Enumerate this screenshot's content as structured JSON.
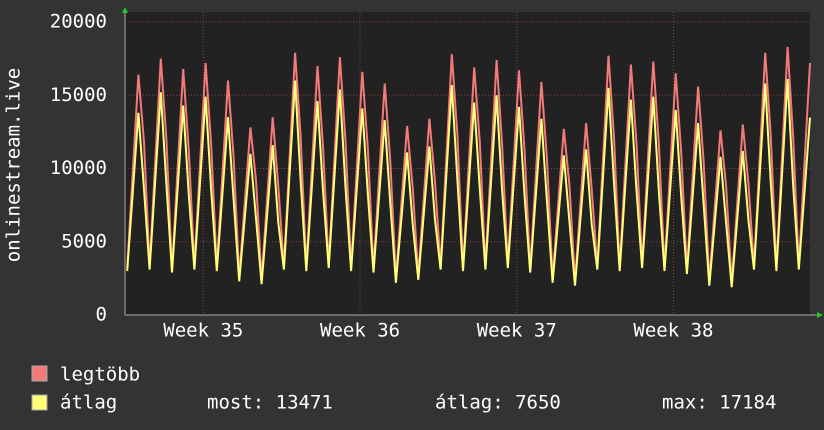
{
  "chart_data": {
    "type": "line",
    "ylabel": "onlinestream.live",
    "x": [
      0.1,
      0.6,
      0.85,
      1.1,
      1.6,
      1.85,
      2.1,
      2.6,
      2.85,
      3.1,
      3.6,
      3.85,
      4.1,
      4.6,
      4.85,
      5.1,
      5.6,
      5.85,
      6.1,
      6.6,
      6.85,
      7.1,
      7.6,
      7.85,
      8.1,
      8.6,
      8.85,
      9.1,
      9.6,
      9.85,
      10.1,
      10.6,
      10.85,
      11.1,
      11.6,
      11.85,
      12.1,
      12.6,
      12.85,
      13.1,
      13.6,
      13.85,
      14.1,
      14.6,
      14.85,
      15.1,
      15.6,
      15.85,
      16.1,
      16.6,
      16.85,
      17.1,
      17.6,
      17.85,
      18.1,
      18.6,
      18.85,
      19.1,
      19.6,
      19.85,
      20.1,
      20.6,
      20.85,
      21.1,
      21.6,
      21.85,
      22.1,
      22.6,
      22.85,
      23.1,
      23.6,
      23.85,
      24.1,
      24.6,
      24.85,
      25.1,
      25.6,
      25.85,
      26.1,
      26.6,
      26.85,
      27.1,
      27.6,
      27.85,
      28.1,
      28.6,
      28.85,
      29.1,
      29.6,
      29.85,
      30.1,
      30.6
    ],
    "series": [
      {
        "name": "legtöbb",
        "color": "#f47a7a",
        "values": [
          3200,
          16400,
          11800,
          3300,
          17500,
          12000,
          3100,
          16800,
          11200,
          3300,
          17200,
          11600,
          3200,
          16000,
          10800,
          2600,
          12800,
          9200,
          2400,
          13500,
          8800,
          3300,
          17900,
          12100,
          3200,
          17000,
          11400,
          3400,
          17600,
          11900,
          3200,
          16600,
          11300,
          3100,
          15800,
          10500,
          2500,
          12900,
          8700,
          2700,
          13400,
          9100,
          3300,
          17800,
          12300,
          3200,
          16900,
          11800,
          3300,
          17400,
          11500,
          3400,
          16700,
          11200,
          3100,
          15900,
          10600,
          2500,
          12700,
          8900,
          2300,
          13100,
          8600,
          3300,
          17700,
          12000,
          3200,
          17100,
          11700,
          3400,
          17300,
          11600,
          3200,
          16500,
          11000,
          3000,
          15600,
          10400,
          2300,
          12600,
          8800,
          2200,
          13000,
          9000,
          3300,
          17900,
          12200,
          3200,
          18300,
          12100,
          3300,
          17200
        ]
      },
      {
        "name": "átlag",
        "color": "#ffff78",
        "values": [
          3000,
          13800,
          8600,
          3100,
          15200,
          8900,
          2900,
          14300,
          8200,
          3100,
          14900,
          8500,
          3000,
          13500,
          7900,
          2300,
          11000,
          6600,
          2100,
          11600,
          6300,
          3100,
          16000,
          9100,
          3000,
          14600,
          8400,
          3200,
          15400,
          8700,
          3000,
          14100,
          8200,
          2900,
          13300,
          7600,
          2200,
          11100,
          6200,
          2400,
          11500,
          6500,
          3100,
          15700,
          9200,
          3000,
          14500,
          8600,
          3100,
          15000,
          8400,
          3200,
          14200,
          8100,
          2900,
          13400,
          7700,
          2200,
          10900,
          6400,
          2000,
          11300,
          6200,
          3100,
          15500,
          8900,
          3000,
          14700,
          8500,
          3200,
          14900,
          8400,
          3000,
          14000,
          8000,
          2800,
          13100,
          7500,
          2000,
          10800,
          6300,
          1900,
          11200,
          6500,
          3100,
          15800,
          9000,
          3000,
          16100,
          8800,
          3100,
          13471
        ]
      }
    ],
    "xlim": [
      0,
      30.6
    ],
    "xticks": [
      {
        "value": 3.5,
        "label": "Week 35"
      },
      {
        "value": 10.5,
        "label": "Week 36"
      },
      {
        "value": 17.5,
        "label": "Week 37"
      },
      {
        "value": 24.5,
        "label": "Week 38"
      }
    ],
    "ylim": [
      0,
      20000
    ],
    "yticks": [
      0,
      5000,
      10000,
      15000,
      20000
    ],
    "grid": true,
    "legend_stats": [
      "most: 13471",
      "átlag: 7650",
      "max: 17184"
    ]
  }
}
